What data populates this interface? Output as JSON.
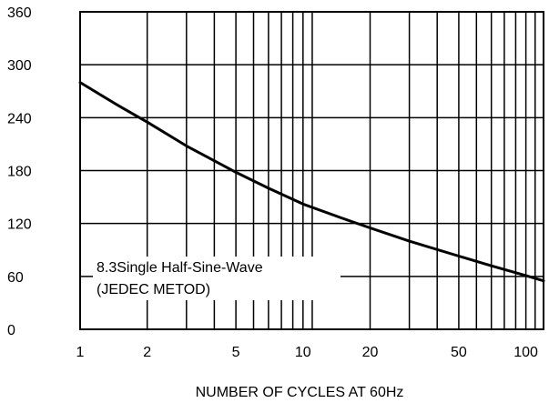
{
  "chart_data": {
    "type": "line",
    "title": "",
    "xlabel": "NUMBER OF CYCLES AT 60Hz",
    "ylabel": "",
    "x_scale": "log",
    "xlim": [
      1,
      120
    ],
    "ylim": [
      0,
      360
    ],
    "x_ticks": [
      1,
      2,
      5,
      10,
      20,
      50,
      100
    ],
    "x_tick_labels": [
      "1",
      "2",
      "5",
      "10",
      "20",
      "50",
      "100"
    ],
    "x_minor_gridlines": [
      3,
      4,
      6,
      7,
      8,
      9,
      11,
      30,
      40,
      60,
      70,
      80,
      90,
      110
    ],
    "y_ticks": [
      0,
      60,
      120,
      180,
      240,
      300,
      360
    ],
    "y_tick_labels": [
      "0",
      "60",
      "120",
      "180",
      "240",
      "300",
      "360"
    ],
    "grid": true,
    "annotation": [
      "8.3Single Half-Sine-Wave",
      "(JEDEC METOD)"
    ],
    "series": [
      {
        "x": [
          1,
          1.5,
          2,
          3,
          5,
          7,
          10,
          15,
          20,
          30,
          50,
          70,
          100,
          120
        ],
        "y": [
          280,
          253,
          235,
          208,
          178,
          160,
          142,
          126,
          115,
          100,
          83,
          72,
          61,
          55
        ],
        "color": "#000000"
      }
    ]
  }
}
